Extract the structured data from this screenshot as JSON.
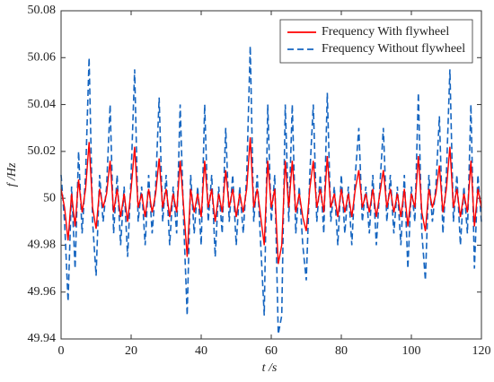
{
  "chart_data": {
    "type": "line",
    "x_label": "t /s",
    "y_label": "f /Hz",
    "xlim": [
      0,
      120
    ],
    "xticks": [
      0,
      20,
      40,
      60,
      80,
      100,
      120
    ],
    "ylim": [
      49.94,
      50.08
    ],
    "yticks": [
      49.94,
      49.96,
      49.98,
      50,
      50.02,
      50.04,
      50.06,
      50.08
    ],
    "legend": "upper right",
    "grid": false,
    "x": [
      0,
      1,
      2,
      3,
      4,
      5,
      6,
      7,
      8,
      9,
      10,
      11,
      12,
      13,
      14,
      15,
      16,
      17,
      18,
      19,
      20,
      21,
      22,
      23,
      24,
      25,
      26,
      27,
      28,
      29,
      30,
      31,
      32,
      33,
      34,
      35,
      36,
      37,
      38,
      39,
      40,
      41,
      42,
      43,
      44,
      45,
      46,
      47,
      48,
      49,
      50,
      51,
      52,
      53,
      54,
      55,
      56,
      57,
      58,
      59,
      60,
      61,
      62,
      63,
      64,
      65,
      66,
      67,
      68,
      69,
      70,
      71,
      72,
      73,
      74,
      75,
      76,
      77,
      78,
      79,
      80,
      81,
      82,
      83,
      84,
      85,
      86,
      87,
      88,
      89,
      90,
      91,
      92,
      93,
      94,
      95,
      96,
      97,
      98,
      99,
      100,
      101,
      102,
      103,
      104,
      105,
      106,
      107,
      108,
      109,
      110,
      111,
      112,
      113,
      114,
      115,
      116,
      117,
      118,
      119,
      120
    ],
    "series": [
      {
        "name": "Frequency With flywheel",
        "color": "#ff0000",
        "dash": "solid",
        "values": [
          50.004,
          49.996,
          49.982,
          50.002,
          49.988,
          50.008,
          49.994,
          50.004,
          50.024,
          49.996,
          49.987,
          50.004,
          49.996,
          50.002,
          50.016,
          49.994,
          50.004,
          49.992,
          50.002,
          49.99,
          50.004,
          50.022,
          49.996,
          50.002,
          49.992,
          50.004,
          49.994,
          50.002,
          50.017,
          49.996,
          50.004,
          49.992,
          50.002,
          49.994,
          50.016,
          49.996,
          49.975,
          50.004,
          49.994,
          50.002,
          49.992,
          50.016,
          49.996,
          50.004,
          49.99,
          50.002,
          49.994,
          50.012,
          49.996,
          50.004,
          49.992,
          50.002,
          49.994,
          50.004,
          50.026,
          49.996,
          50.004,
          49.992,
          49.98,
          50.016,
          49.996,
          50.004,
          49.972,
          49.98,
          50.016,
          49.996,
          50.016,
          49.994,
          50.002,
          49.992,
          49.986,
          50.004,
          50.016,
          49.996,
          50.004,
          49.994,
          50.018,
          49.996,
          50.002,
          49.992,
          50.004,
          49.994,
          50.002,
          49.992,
          50.004,
          50.012,
          49.996,
          50.002,
          49.994,
          50.004,
          49.992,
          50.002,
          50.012,
          49.996,
          50.004,
          49.994,
          50.002,
          49.992,
          50.004,
          49.988,
          50.002,
          49.996,
          50.018,
          49.994,
          49.986,
          50.004,
          49.996,
          50.002,
          50.014,
          49.994,
          50.004,
          50.022,
          49.996,
          50.004,
          49.992,
          50.002,
          49.994,
          50.016,
          49.988,
          50.004,
          49.996
        ]
      },
      {
        "name": "Frequency Without flywheel",
        "color": "#1565c0",
        "dash": "dashed",
        "values": [
          50.01,
          49.99,
          49.956,
          50.005,
          49.97,
          50.02,
          49.985,
          50.01,
          50.06,
          49.99,
          49.967,
          50.01,
          49.99,
          50.005,
          50.04,
          49.985,
          50.01,
          49.98,
          50.005,
          49.975,
          50.01,
          50.055,
          49.99,
          50.005,
          49.98,
          50.01,
          49.985,
          50.005,
          50.043,
          49.99,
          50.01,
          49.98,
          50.005,
          49.985,
          50.04,
          49.99,
          49.95,
          50.01,
          49.985,
          50.005,
          49.98,
          50.04,
          49.99,
          50.01,
          49.975,
          50.005,
          49.985,
          50.03,
          49.99,
          50.01,
          49.98,
          50.005,
          49.985,
          50.01,
          50.065,
          49.99,
          50.01,
          49.98,
          49.95,
          50.04,
          49.99,
          50.01,
          49.942,
          49.95,
          50.04,
          49.99,
          50.04,
          49.985,
          50.005,
          49.98,
          49.965,
          50.01,
          50.04,
          49.99,
          50.01,
          49.985,
          50.045,
          49.99,
          50.005,
          49.98,
          50.01,
          49.985,
          50.005,
          49.98,
          50.01,
          50.03,
          49.99,
          50.005,
          49.985,
          50.01,
          49.98,
          50.005,
          50.03,
          49.99,
          50.01,
          49.985,
          50.005,
          49.98,
          50.01,
          49.97,
          50.005,
          49.99,
          50.045,
          49.985,
          49.965,
          50.01,
          49.99,
          50.005,
          50.035,
          49.985,
          50.01,
          50.055,
          49.99,
          50.01,
          49.98,
          50.005,
          49.985,
          50.04,
          49.97,
          50.01,
          49.99
        ]
      }
    ]
  }
}
